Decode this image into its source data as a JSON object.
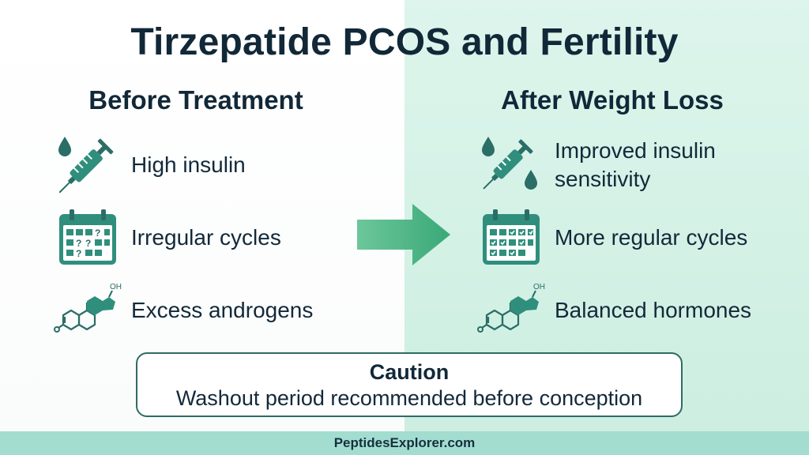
{
  "title": "Tirzepatide PCOS and Fertility",
  "before": {
    "heading": "Before Treatment",
    "items": [
      {
        "icon": "syringe-drop-icon",
        "label": "High insulin"
      },
      {
        "icon": "calendar-question-icon",
        "label": "Irregular cycles"
      },
      {
        "icon": "steroid-molecule-icon",
        "label": "Excess androgens"
      }
    ]
  },
  "after": {
    "heading": "After Weight Loss",
    "items": [
      {
        "icon": "syringe-drops-icon",
        "label": "Improved insulin sensitivity"
      },
      {
        "icon": "calendar-check-icon",
        "label": "More regular cycles"
      },
      {
        "icon": "steroid-molecule-icon",
        "label": "Balanced hormones"
      }
    ]
  },
  "caution": {
    "title": "Caution",
    "text": "Washout period recommended before conception"
  },
  "footer": "PeptidesExplorer.com",
  "molecule_labels": {
    "oh": "OH",
    "o": "O"
  },
  "calendar_marks": {
    "question": "?"
  },
  "colors": {
    "primary_teal": "#2f8f7c",
    "dark_teal": "#2a6e66",
    "arrow_green": "#4fb489",
    "navy_text": "#112838",
    "right_bg": "#d6f3e8",
    "footer_bg": "#a3ddd0"
  }
}
